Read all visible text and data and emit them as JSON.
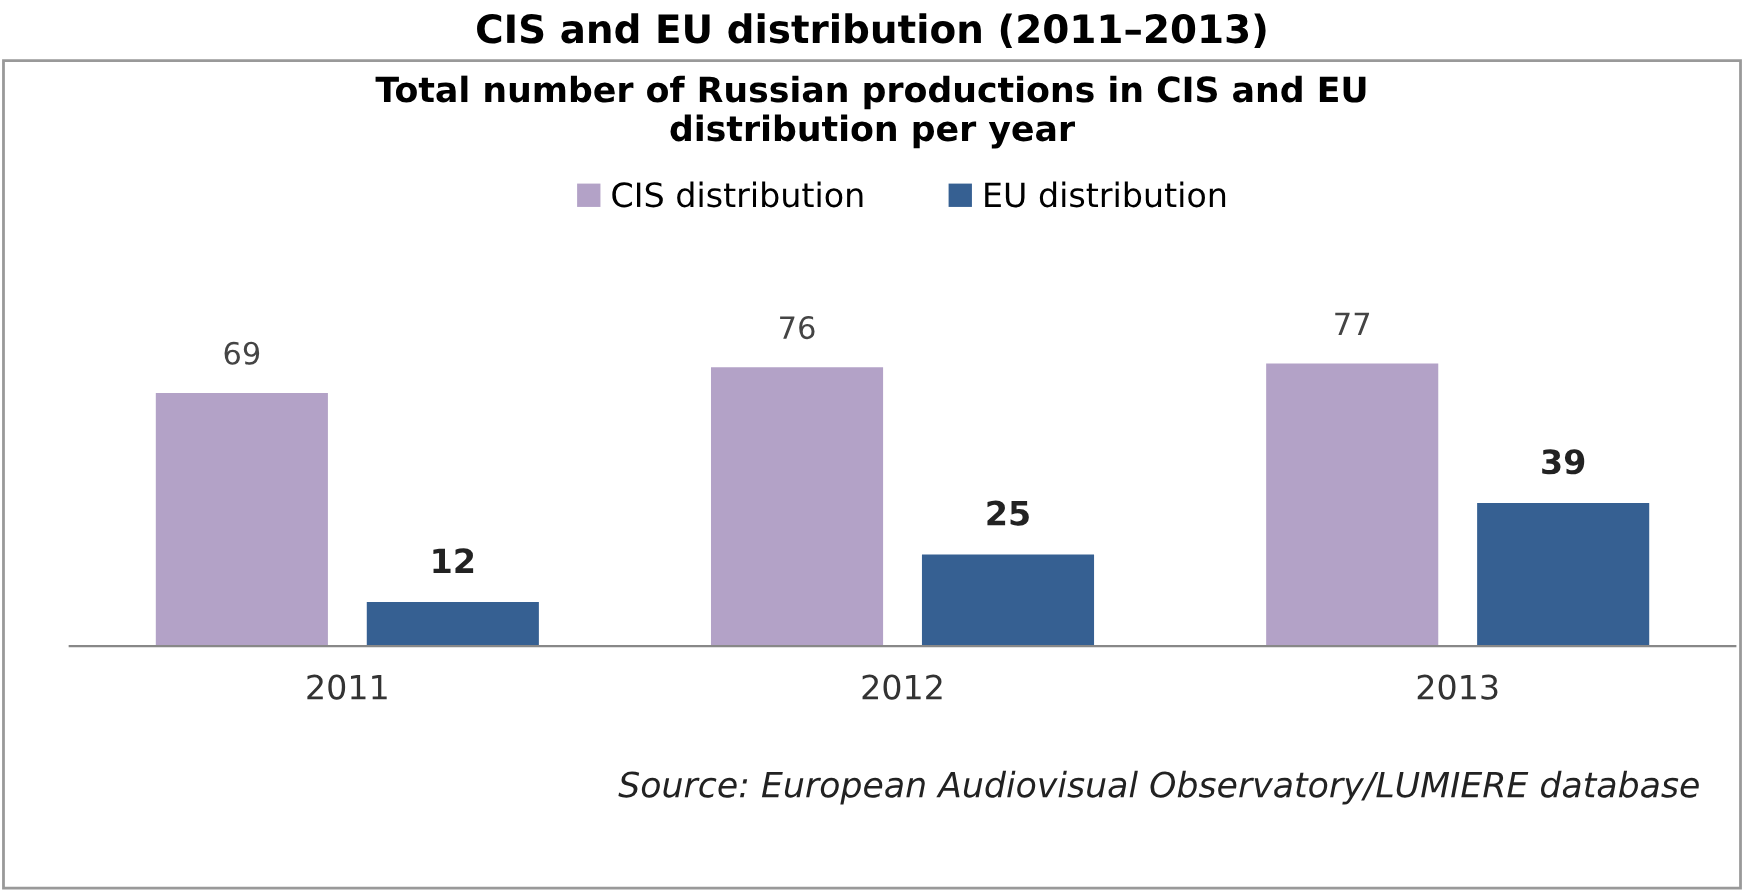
{
  "chart_data": {
    "type": "bar",
    "title": "Total number of Russian productions in CIS and EU\ndistribution per year",
    "subtitle": "CIS and EU distribution (2011–2013)",
    "categories": [
      "2011",
      "2012",
      "2013"
    ],
    "series": [
      {
        "name": "CIS distribution",
        "color": "#b3a2c7",
        "values": [
          69,
          76,
          77
        ]
      },
      {
        "name": "EU distribution",
        "color": "#366092",
        "values": [
          12,
          25,
          39
        ]
      }
    ],
    "data_labels": true,
    "legend": "top",
    "grid": false,
    "annotations": [
      "Source: European Audiovisual Observatory/LUMIERE database"
    ]
  }
}
